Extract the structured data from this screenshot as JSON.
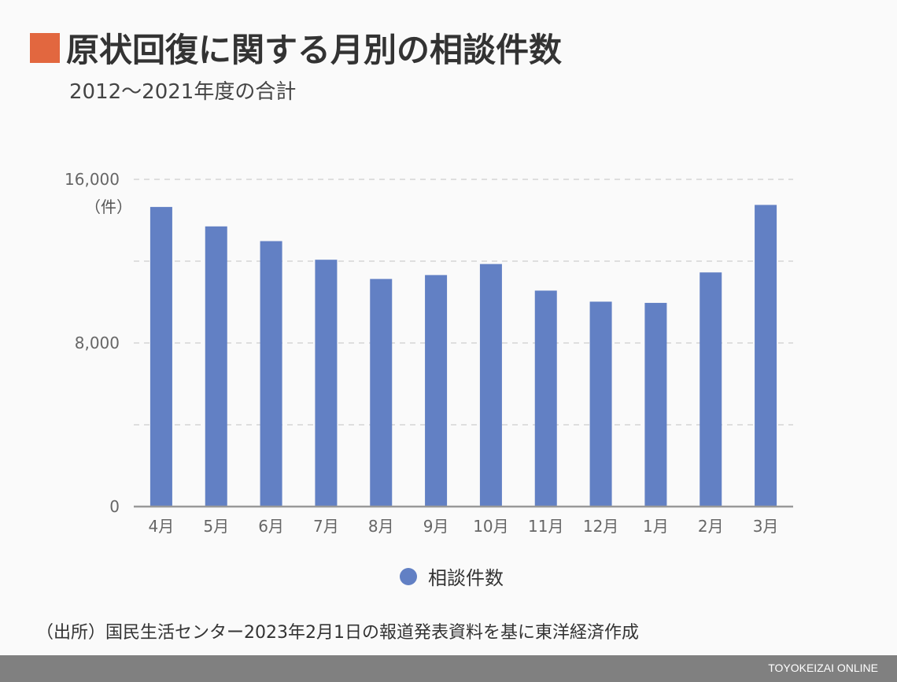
{
  "title": "原状回復に関する月別の相談件数",
  "subtitle": "2012～2021年度の合計",
  "unit_label": "（件）",
  "source": "（出所）国民生活センター2023年2月1日の報道発表資料を基に東洋経済作成",
  "brand": "TOYOKEIZAI ONLINE",
  "colors": {
    "accent": "#e2673f",
    "bar": "#6280c4",
    "footer": "#808080"
  },
  "chart_data": {
    "type": "bar",
    "categories": [
      "4月",
      "5月",
      "6月",
      "7月",
      "8月",
      "9月",
      "10月",
      "11月",
      "12月",
      "1月",
      "2月",
      "3月"
    ],
    "series": [
      {
        "name": "相談件数",
        "values": [
          14650,
          13700,
          12980,
          12070,
          11130,
          11320,
          11860,
          10560,
          10020,
          9960,
          11450,
          14750
        ]
      }
    ],
    "ylim": [
      0,
      16000
    ],
    "yticks": [
      0,
      8000,
      16000
    ],
    "ytick_labels": [
      "0",
      "8,000",
      "16,000"
    ],
    "gridlines": [
      4000,
      8000,
      12000,
      16000
    ],
    "grid": true,
    "legend": "bottom-center"
  }
}
